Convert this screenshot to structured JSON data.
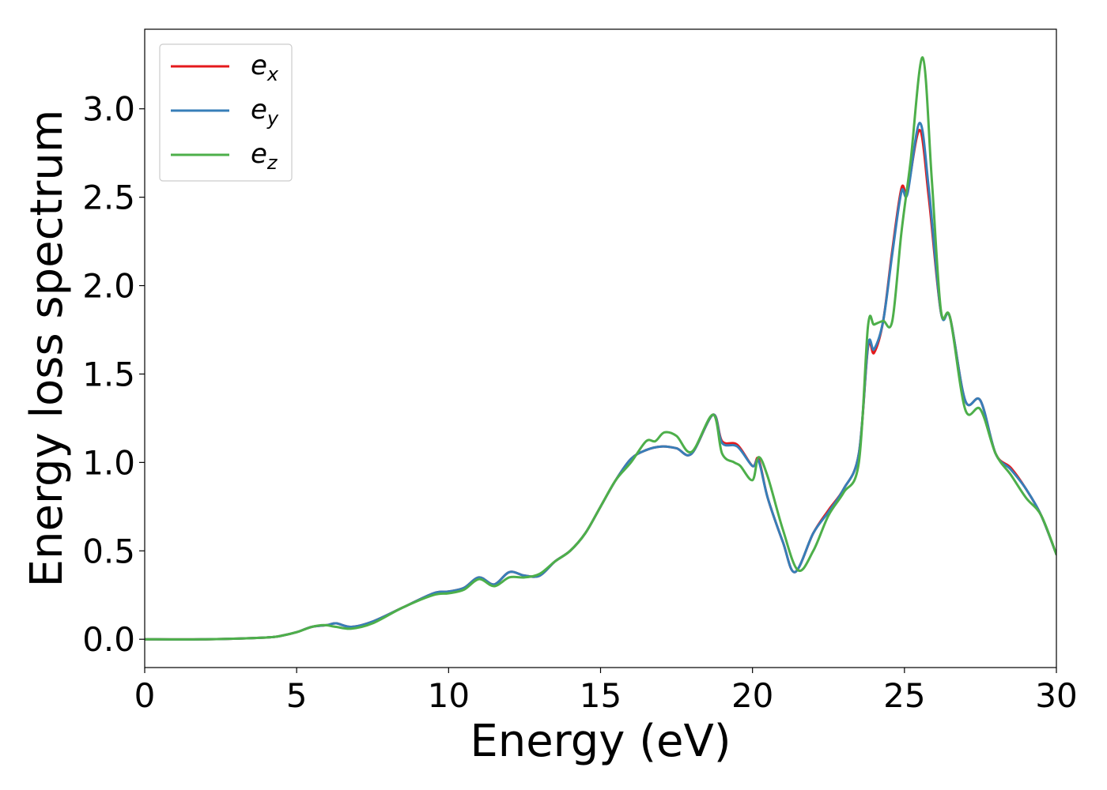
{
  "chart_data": {
    "type": "line",
    "title": "",
    "xlabel": "Energy (eV)",
    "ylabel": "Energy loss spectrum",
    "xlim": [
      0,
      30
    ],
    "ylim": [
      -0.16,
      3.45
    ],
    "xticks": [
      0,
      5,
      10,
      15,
      20,
      25,
      30
    ],
    "xtick_labels": [
      "0",
      "5",
      "10",
      "15",
      "20",
      "25",
      "30"
    ],
    "yticks": [
      0.0,
      0.5,
      1.0,
      1.5,
      2.0,
      2.5,
      3.0
    ],
    "ytick_labels": [
      "0.0",
      "0.5",
      "1.0",
      "1.5",
      "2.0",
      "2.5",
      "3.0"
    ],
    "grid": false,
    "legend": "top-left",
    "series": [
      {
        "name": "e_x",
        "legend_base": "e",
        "legend_sub": "x",
        "color": "#e41a1c",
        "x": [
          0,
          2,
          4,
          4.5,
          5,
          5.5,
          6,
          6.3,
          6.8,
          7.5,
          8.5,
          9.5,
          10,
          10.5,
          11,
          11.5,
          12,
          12.5,
          13,
          13.5,
          14,
          14.5,
          15,
          15.5,
          16,
          16.5,
          17,
          17.5,
          18,
          18.7,
          19,
          19.5,
          20,
          20.2,
          20.5,
          21,
          21.4,
          22,
          22.5,
          23,
          23.5,
          23.8,
          24,
          24.3,
          24.6,
          24.9,
          25.1,
          25.5,
          25.8,
          26.2,
          26.5,
          27,
          27.5,
          28,
          28.5,
          29,
          29.5,
          30
        ],
        "values": [
          0,
          0,
          0.01,
          0.02,
          0.04,
          0.07,
          0.08,
          0.09,
          0.07,
          0.1,
          0.18,
          0.26,
          0.27,
          0.29,
          0.35,
          0.31,
          0.38,
          0.36,
          0.36,
          0.44,
          0.5,
          0.6,
          0.75,
          0.9,
          1.02,
          1.07,
          1.09,
          1.08,
          1.05,
          1.27,
          1.12,
          1.1,
          0.98,
          1.02,
          0.8,
          0.55,
          0.38,
          0.6,
          0.73,
          0.85,
          1.05,
          1.65,
          1.62,
          1.8,
          2.2,
          2.55,
          2.54,
          2.88,
          2.5,
          1.85,
          1.82,
          1.35,
          1.35,
          1.05,
          0.97,
          0.85,
          0.7,
          0.48
        ]
      },
      {
        "name": "e_y",
        "legend_base": "e",
        "legend_sub": "y",
        "color": "#377eb8",
        "x": [
          0,
          2,
          4,
          4.5,
          5,
          5.5,
          6,
          6.3,
          6.8,
          7.5,
          8.5,
          9.5,
          10,
          10.5,
          11,
          11.5,
          12,
          12.5,
          13,
          13.5,
          14,
          14.5,
          15,
          15.5,
          16,
          16.5,
          17,
          17.5,
          18,
          18.7,
          19,
          19.5,
          20,
          20.2,
          20.5,
          21,
          21.4,
          22,
          22.5,
          23,
          23.5,
          23.8,
          24,
          24.3,
          24.6,
          24.9,
          25.1,
          25.5,
          25.8,
          26.2,
          26.5,
          27,
          27.5,
          28,
          28.5,
          29,
          29.5,
          30
        ],
        "values": [
          0,
          0,
          0.01,
          0.02,
          0.04,
          0.07,
          0.08,
          0.09,
          0.07,
          0.1,
          0.18,
          0.26,
          0.27,
          0.29,
          0.35,
          0.31,
          0.38,
          0.36,
          0.36,
          0.44,
          0.5,
          0.6,
          0.75,
          0.9,
          1.02,
          1.07,
          1.09,
          1.08,
          1.05,
          1.27,
          1.11,
          1.09,
          0.98,
          1.01,
          0.8,
          0.55,
          0.38,
          0.6,
          0.72,
          0.85,
          1.05,
          1.66,
          1.64,
          1.8,
          2.18,
          2.53,
          2.52,
          2.92,
          2.55,
          1.85,
          1.82,
          1.35,
          1.35,
          1.05,
          0.96,
          0.85,
          0.7,
          0.48
        ]
      },
      {
        "name": "e_z",
        "legend_base": "e",
        "legend_sub": "z",
        "color": "#4daf4a",
        "x": [
          0,
          2,
          4,
          4.5,
          5,
          5.5,
          5.9,
          6.3,
          6.8,
          7.5,
          8.5,
          9.5,
          10,
          10.5,
          11,
          11.5,
          12,
          12.5,
          13,
          13.5,
          14,
          14.5,
          15,
          15.5,
          16,
          16.5,
          16.8,
          17.1,
          17.5,
          18,
          18.7,
          19,
          19.4,
          19.6,
          20,
          20.2,
          20.5,
          21,
          21.5,
          22,
          22.5,
          23,
          23.5,
          23.8,
          24,
          24.3,
          24.6,
          24.9,
          25.2,
          25.6,
          25.9,
          26.2,
          26.5,
          27,
          27.5,
          28,
          28.5,
          29,
          29.5,
          30
        ],
        "values": [
          0,
          0,
          0.01,
          0.02,
          0.04,
          0.07,
          0.08,
          0.07,
          0.06,
          0.09,
          0.18,
          0.25,
          0.26,
          0.28,
          0.34,
          0.3,
          0.35,
          0.35,
          0.37,
          0.44,
          0.5,
          0.6,
          0.75,
          0.9,
          1.0,
          1.12,
          1.12,
          1.17,
          1.15,
          1.06,
          1.27,
          1.05,
          1.0,
          0.98,
          0.9,
          1.03,
          0.92,
          0.62,
          0.39,
          0.5,
          0.7,
          0.83,
          1.0,
          1.77,
          1.78,
          1.8,
          1.8,
          2.3,
          2.7,
          3.29,
          2.6,
          1.86,
          1.82,
          1.3,
          1.3,
          1.05,
          0.93,
          0.8,
          0.7,
          0.48
        ]
      }
    ]
  }
}
